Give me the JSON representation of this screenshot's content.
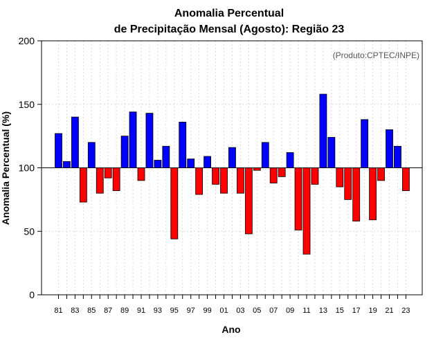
{
  "chart_data": {
    "type": "bar",
    "title_line1": "Anomalia Percentual",
    "title_line2": "de Precipitação Mensal (Agosto): Região 23",
    "xlabel": "Ano",
    "ylabel": "Anomalia Percentual (%)",
    "credit": "(Produto:CPTEC/INPE)",
    "ylim": [
      0,
      200
    ],
    "yticks": [
      0,
      50,
      100,
      150,
      200
    ],
    "baseline": 100,
    "colors": {
      "above": "#0000ff",
      "below": "#ff0000"
    },
    "grid": true,
    "xtick_labels": [
      "81",
      "83",
      "85",
      "87",
      "89",
      "91",
      "93",
      "95",
      "97",
      "99",
      "01",
      "03",
      "05",
      "07",
      "09",
      "11",
      "13",
      "15",
      "17",
      "19",
      "21",
      "23"
    ],
    "categories": [
      "1981",
      "1982",
      "1983",
      "1984",
      "1985",
      "1986",
      "1987",
      "1988",
      "1989",
      "1990",
      "1991",
      "1992",
      "1993",
      "1994",
      "1995",
      "1996",
      "1997",
      "1998",
      "1999",
      "2000",
      "2001",
      "2002",
      "2003",
      "2004",
      "2005",
      "2006",
      "2007",
      "2008",
      "2009",
      "2010",
      "2011",
      "2012",
      "2013",
      "2014",
      "2015",
      "2016",
      "2017",
      "2018",
      "2019",
      "2020",
      "2021",
      "2022",
      "2023"
    ],
    "values": [
      127,
      105,
      140,
      73,
      120,
      80,
      92,
      82,
      125,
      144,
      90,
      143,
      106,
      117,
      44,
      136,
      107,
      79,
      109,
      87,
      80,
      116,
      80,
      48,
      98,
      120,
      88,
      93,
      112,
      51,
      32,
      87,
      158,
      124,
      85,
      75,
      58,
      138,
      59,
      90,
      130,
      117,
      82
    ]
  }
}
